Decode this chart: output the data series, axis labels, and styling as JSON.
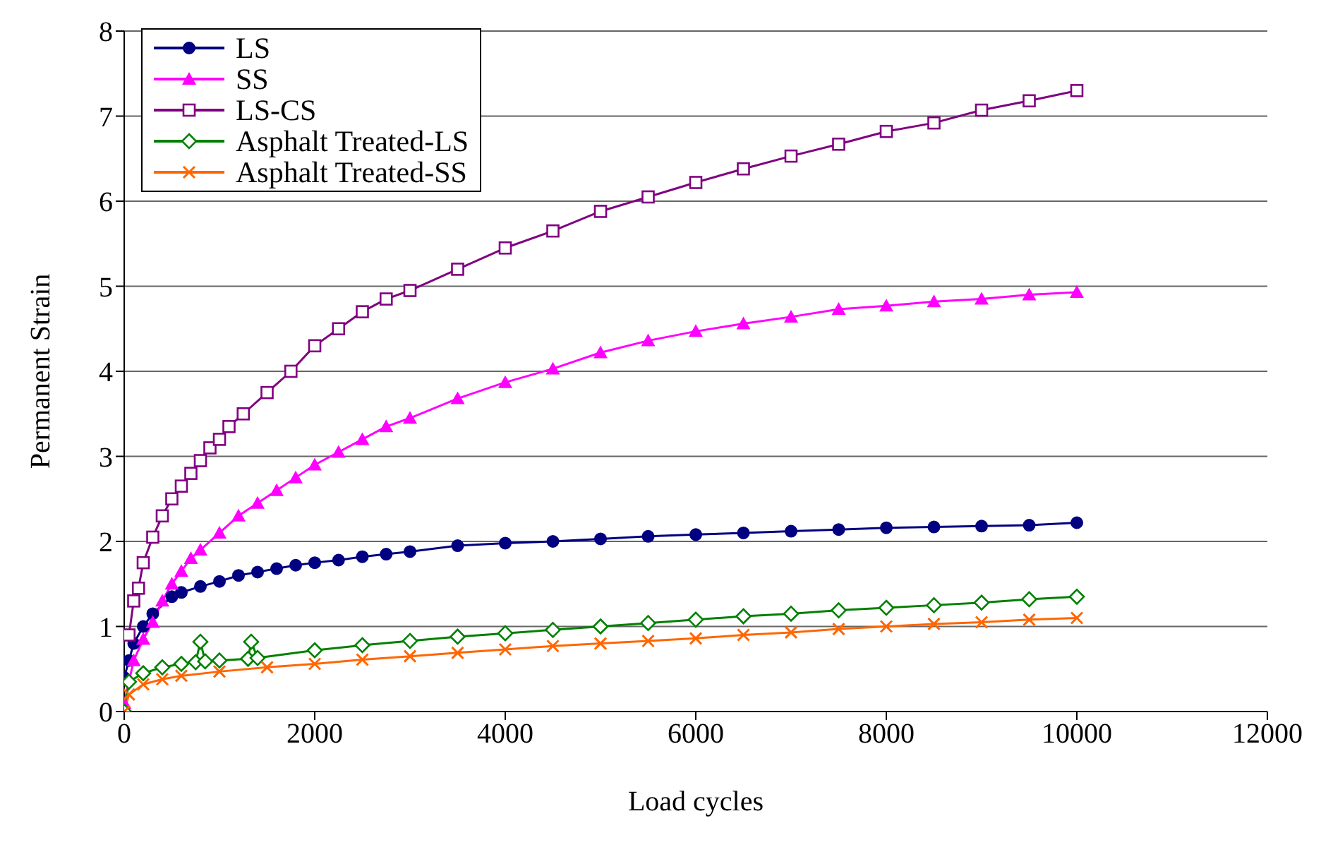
{
  "chart_data": {
    "type": "line",
    "xlabel": "Load cycles",
    "ylabel": "Permanent Strain",
    "xlim": [
      0,
      12000
    ],
    "xticks": [
      0,
      2000,
      4000,
      6000,
      8000,
      10000,
      12000
    ],
    "ylim": [
      0,
      8
    ],
    "yticks": [
      0,
      1,
      2,
      3,
      4,
      5,
      6,
      7,
      8
    ],
    "grid": "y",
    "legend": "top left",
    "line_style": "solid",
    "series": [
      {
        "name": "LS",
        "color": "#000080",
        "marker": "circle",
        "x": [
          0,
          50,
          100,
          200,
          300,
          500,
          600,
          800,
          1000,
          1200,
          1400,
          1600,
          1800,
          2000,
          2250,
          2500,
          2750,
          3000,
          3500,
          4000,
          4500,
          5000,
          5500,
          6000,
          6500,
          7000,
          7500,
          8000,
          8500,
          9000,
          9500,
          10000
        ],
        "values": [
          0.4,
          0.6,
          0.8,
          1.0,
          1.15,
          1.35,
          1.4,
          1.47,
          1.53,
          1.6,
          1.64,
          1.68,
          1.72,
          1.75,
          1.78,
          1.82,
          1.85,
          1.88,
          1.95,
          1.98,
          2.0,
          2.03,
          2.06,
          2.08,
          2.1,
          2.12,
          2.14,
          2.16,
          2.17,
          2.18,
          2.19,
          2.22
        ]
      },
      {
        "name": "SS",
        "color": "#ff00ff",
        "marker": "triangle",
        "x": [
          0,
          100,
          200,
          300,
          400,
          500,
          600,
          700,
          800,
          1000,
          1200,
          1400,
          1600,
          1800,
          2000,
          2250,
          2500,
          2750,
          3000,
          3500,
          4000,
          4500,
          5000,
          5500,
          6000,
          6500,
          7000,
          7500,
          8000,
          8500,
          9000,
          9500,
          10000
        ],
        "values": [
          0.1,
          0.6,
          0.85,
          1.05,
          1.3,
          1.5,
          1.65,
          1.8,
          1.9,
          2.1,
          2.3,
          2.45,
          2.6,
          2.75,
          2.9,
          3.05,
          3.2,
          3.35,
          3.45,
          3.68,
          3.87,
          4.03,
          4.22,
          4.36,
          4.47,
          4.56,
          4.64,
          4.73,
          4.77,
          4.82,
          4.85,
          4.9,
          4.93
        ]
      },
      {
        "name": "LS-CS",
        "color": "#800080",
        "marker": "square",
        "x": [
          50,
          100,
          150,
          200,
          300,
          400,
          500,
          600,
          700,
          800,
          900,
          1000,
          1100,
          1250,
          1500,
          1750,
          2000,
          2250,
          2500,
          2750,
          3000,
          3500,
          4000,
          4500,
          5000,
          5500,
          6000,
          6500,
          7000,
          7500,
          8000,
          8500,
          9000,
          9500,
          10000
        ],
        "values": [
          0.9,
          1.3,
          1.45,
          1.75,
          2.05,
          2.3,
          2.5,
          2.65,
          2.8,
          2.95,
          3.1,
          3.2,
          3.35,
          3.5,
          3.75,
          4.0,
          4.3,
          4.5,
          4.7,
          4.85,
          4.95,
          5.2,
          5.45,
          5.65,
          5.88,
          6.05,
          6.22,
          6.38,
          6.53,
          6.67,
          6.82,
          6.92,
          7.07,
          7.18,
          7.3
        ]
      },
      {
        "name": "Asphalt Treated-LS",
        "color": "#008000",
        "marker": "diamond",
        "x": [
          0,
          50,
          200,
          400,
          600,
          750,
          800,
          850,
          1000,
          1300,
          1333,
          1400,
          2000,
          2500,
          3000,
          3500,
          4000,
          4500,
          5000,
          5500,
          6000,
          6500,
          7000,
          7500,
          8000,
          8500,
          9000,
          9500,
          10000
        ],
        "values": [
          0,
          0.35,
          0.45,
          0.52,
          0.56,
          0.58,
          0.82,
          0.59,
          0.6,
          0.62,
          0.82,
          0.63,
          0.72,
          0.78,
          0.83,
          0.88,
          0.92,
          0.96,
          1.0,
          1.04,
          1.08,
          1.12,
          1.15,
          1.19,
          1.22,
          1.25,
          1.28,
          1.32,
          1.35
        ]
      },
      {
        "name": "Asphalt Treated-SS",
        "color": "#ff6600",
        "marker": "cross",
        "x": [
          0,
          50,
          200,
          400,
          600,
          1000,
          1500,
          2000,
          2500,
          3000,
          3500,
          4000,
          4500,
          5000,
          5500,
          6000,
          6500,
          7000,
          7500,
          8000,
          8500,
          9000,
          9500,
          10000
        ],
        "values": [
          0,
          0.2,
          0.32,
          0.38,
          0.42,
          0.47,
          0.52,
          0.56,
          0.61,
          0.65,
          0.69,
          0.73,
          0.77,
          0.8,
          0.83,
          0.86,
          0.9,
          0.93,
          0.97,
          1.0,
          1.03,
          1.05,
          1.08,
          1.1
        ]
      }
    ]
  }
}
